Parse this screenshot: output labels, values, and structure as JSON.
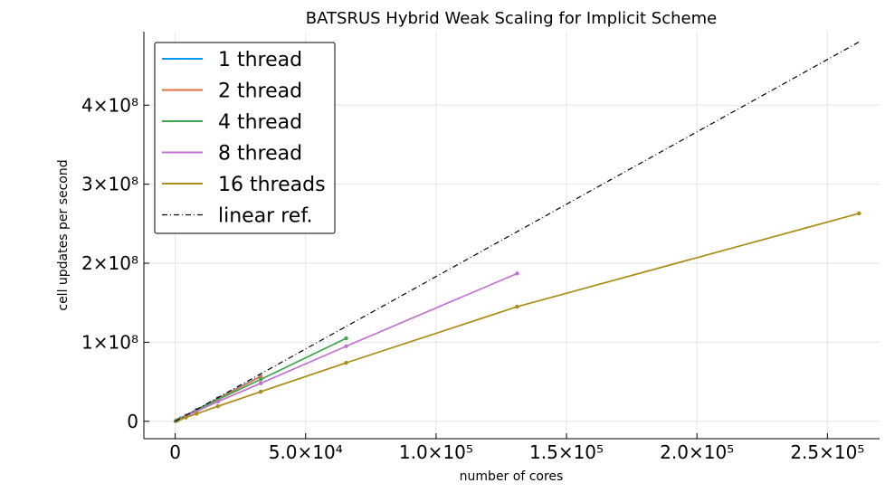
{
  "chart_data": {
    "type": "line",
    "title": "BATSRUS Hybrid Weak Scaling for Implicit Scheme",
    "xlabel": "number of cores",
    "ylabel": "cell updates per second",
    "xlim": [
      -12000,
      270000
    ],
    "ylim": [
      -22000000,
      493000000
    ],
    "grid": true,
    "legend_position": "top-left",
    "x_ticks": [
      {
        "value": 0,
        "label": "0"
      },
      {
        "value": 50000,
        "label": "5.0×10⁴"
      },
      {
        "value": 100000,
        "label": "1.0×10⁵"
      },
      {
        "value": 150000,
        "label": "1.5×10⁵"
      },
      {
        "value": 200000,
        "label": "2.0×10⁵"
      },
      {
        "value": 250000,
        "label": "2.5×10⁵"
      }
    ],
    "y_ticks": [
      {
        "value": 0,
        "label": "0"
      },
      {
        "value": 100000000,
        "label": "1×10⁸"
      },
      {
        "value": 200000000,
        "label": "2×10⁸"
      },
      {
        "value": 300000000,
        "label": "3×10⁸"
      },
      {
        "value": 400000000,
        "label": "4×10⁸"
      }
    ],
    "series": [
      {
        "name": "1 thread",
        "color": "#009AFA",
        "dash": "",
        "markers": true,
        "x": [
          128,
          512,
          2048,
          8192,
          16384,
          32768
        ],
        "y": [
          230000,
          930000,
          3700000,
          14600000,
          29000000,
          57000000
        ]
      },
      {
        "name": "2 thread",
        "color": "#E36F47",
        "dash": "",
        "markers": true,
        "x": [
          256,
          1024,
          4096,
          8192,
          16384,
          32768
        ],
        "y": [
          450000,
          1800000,
          7200000,
          14300000,
          28500000,
          56500000
        ]
      },
      {
        "name": "4 thread",
        "color": "#3EA44E",
        "dash": "",
        "markers": true,
        "x": [
          512,
          2048,
          8192,
          16384,
          32768,
          65536
        ],
        "y": [
          880000,
          3500000,
          14000000,
          27500000,
          53000000,
          105000000
        ]
      },
      {
        "name": "8 thread",
        "color": "#C371D2",
        "dash": "",
        "markers": true,
        "x": [
          1024,
          4096,
          8192,
          16384,
          32768,
          65536,
          131072
        ],
        "y": [
          1600000,
          6400000,
          12700000,
          25000000,
          48000000,
          95000000,
          187000000
        ]
      },
      {
        "name": "16 threads",
        "color": "#AC8D18",
        "dash": "",
        "markers": true,
        "x": [
          1024,
          4096,
          8192,
          16384,
          32768,
          65536,
          131072,
          262144
        ],
        "y": [
          1200000,
          4800000,
          9600000,
          19000000,
          37500000,
          74000000,
          145000000,
          263000000
        ]
      },
      {
        "name": "linear ref.",
        "color": "#000000",
        "dash": "6,3,1,3",
        "markers": false,
        "x": [
          0,
          262144
        ],
        "y": [
          0,
          480000000
        ]
      }
    ]
  }
}
